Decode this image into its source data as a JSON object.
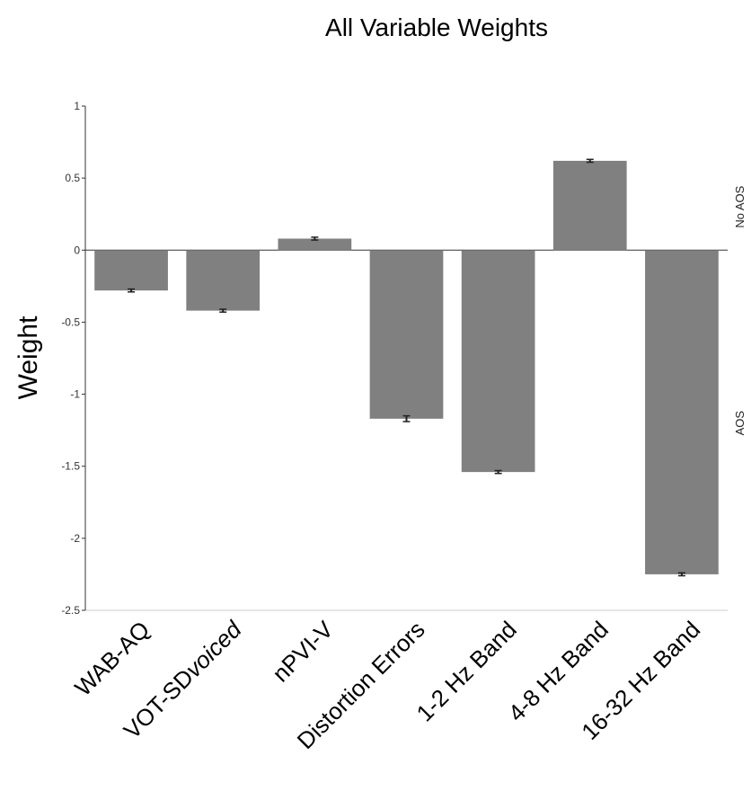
{
  "chart_data": {
    "type": "bar",
    "title": "All Variable Weights",
    "xlabel": "",
    "ylabel": "Weight",
    "ylim": [
      -2.5,
      1
    ],
    "yticks": [
      1,
      0.5,
      0,
      -0.5,
      -1,
      -1.5,
      -2,
      -2.5
    ],
    "ytick_labels": [
      "1",
      "0.5",
      "0",
      "-0.5",
      "-1",
      "-1.5",
      "-2",
      "-2.5"
    ],
    "categories": [
      "WAB-AQ",
      "VOT-SDvoiced",
      "nPVI-V",
      "Distortion Errors",
      "1-2 Hz Band",
      "4-8 Hz Band",
      "16-32 Hz Band"
    ],
    "category_parts": [
      [
        {
          "text": "WAB-AQ",
          "italic": false
        }
      ],
      [
        {
          "text": "VOT-SD",
          "italic": false
        },
        {
          "text": "voiced",
          "italic": true
        }
      ],
      [
        {
          "text": "nPVI-V",
          "italic": false
        }
      ],
      [
        {
          "text": "Distortion Errors",
          "italic": false
        }
      ],
      [
        {
          "text": "1-2 Hz Band",
          "italic": false
        }
      ],
      [
        {
          "text": "4-8 Hz Band",
          "italic": false
        }
      ],
      [
        {
          "text": "16-32 Hz Band",
          "italic": false
        }
      ]
    ],
    "values": [
      -0.28,
      -0.42,
      0.08,
      -1.17,
      -1.54,
      0.62,
      -2.25
    ],
    "errors": [
      0.01,
      0.01,
      0.01,
      0.02,
      0.01,
      0.01,
      0.01
    ],
    "bar_color": "#808080",
    "error_color": "#222222",
    "grid": false,
    "right_annotations": [
      {
        "text": "No AOS",
        "y": 0.3
      },
      {
        "text": "AOS",
        "y": -1.2
      }
    ]
  }
}
